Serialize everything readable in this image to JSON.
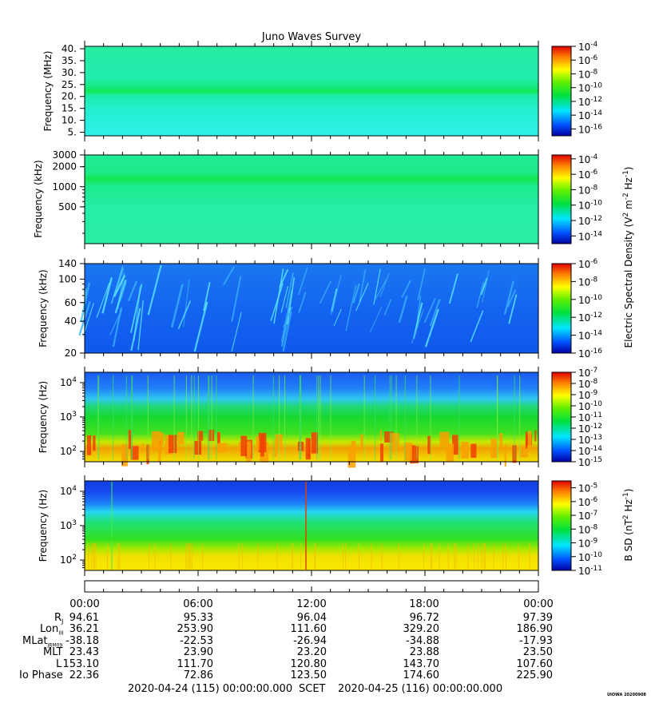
{
  "chart_data": {
    "type": "heatmap",
    "title": "Juno Waves Survey",
    "panels": [
      {
        "ylabel": "Frequency (MHz)",
        "yscale": "linear",
        "ylim": [
          3.5,
          41
        ],
        "yticks": [
          5,
          10,
          15,
          20,
          25,
          30,
          35,
          40
        ],
        "ytick_labels": [
          "5.",
          "10.",
          "15.",
          "20.",
          "25.",
          "30.",
          "35.",
          "40."
        ],
        "colorbar_ticks": [
          "-4",
          "-6",
          "-8",
          "-10",
          "-12",
          "-14",
          "-16"
        ],
        "colorbar_range": [
          -17,
          -4
        ]
      },
      {
        "ylabel": "Frequency (kHz)",
        "yscale": "log",
        "ylim": [
          140,
          3000
        ],
        "yticks": [
          500,
          1000,
          2000,
          3000
        ],
        "ytick_labels": [
          "500",
          "1000",
          "2000",
          "3000"
        ],
        "colorbar_ticks": [
          "-4",
          "-6",
          "-8",
          "-10",
          "-12",
          "-14"
        ],
        "colorbar_range": [
          -15,
          -3.5
        ]
      },
      {
        "ylabel": "Frequency (kHz)",
        "yscale": "log",
        "ylim": [
          20,
          140
        ],
        "yticks": [
          20,
          40,
          60,
          100,
          140
        ],
        "ytick_labels": [
          "20",
          "40",
          "60",
          "100",
          "140"
        ],
        "colorbar_ticks": [
          "-6",
          "-8",
          "-10",
          "-12",
          "-14",
          "-16"
        ],
        "colorbar_range": [
          -16,
          -6
        ]
      },
      {
        "ylabel": "Frequency (Hz)",
        "yscale": "log",
        "ylim": [
          50,
          20000
        ],
        "yticks": [
          100,
          1000,
          10000
        ],
        "ytick_labels": [
          "10",
          "10",
          "10"
        ],
        "ytick_exps": [
          "2",
          "3",
          "4"
        ],
        "colorbar_ticks": [
          "-7",
          "-8",
          "-9",
          "-10",
          "-11",
          "-12",
          "-13",
          "-14",
          "-15"
        ],
        "colorbar_range": [
          -15,
          -7
        ]
      },
      {
        "ylabel": "Frequency (Hz)",
        "yscale": "log",
        "ylim": [
          50,
          20000
        ],
        "yticks": [
          100,
          1000,
          10000
        ],
        "ytick_labels": [
          "10",
          "10",
          "10"
        ],
        "ytick_exps": [
          "2",
          "3",
          "4"
        ],
        "colorbar_ticks": [
          "-5",
          "-6",
          "-7",
          "-8",
          "-9",
          "-10",
          "-11"
        ],
        "colorbar_range": [
          -11,
          -4.5
        ]
      }
    ],
    "colorbar_labels": [
      {
        "prefix": "Electric Spectral Density (V",
        "sup1": "2",
        "mid": " m",
        "sup2": "-2",
        "mid2": " Hz",
        "sup3": "-1",
        "suffix": ")"
      },
      {
        "prefix": "B SD (nT",
        "sup1": "2",
        "mid": " Hz",
        "sup2": "-1",
        "mid2": "",
        "sup3": "",
        "suffix": ")"
      }
    ],
    "colorbar_base": "10",
    "x_ticks": [
      "00:00",
      "06:00",
      "12:00",
      "18:00",
      "00:00"
    ],
    "ephemeris": {
      "labels": [
        "R",
        "Lon",
        "MLat",
        "MLT",
        "L",
        "Io Phase"
      ],
      "label_subscripts": [
        "J",
        "III",
        "JRM09",
        "",
        "",
        ""
      ],
      "rows": [
        [
          "94.61",
          "95.33",
          "96.04",
          "96.72",
          "97.39"
        ],
        [
          "36.21",
          "253.90",
          "111.60",
          "329.20",
          "186.90"
        ],
        [
          "-38.18",
          "-22.53",
          "-26.94",
          "-34.88",
          "-17.93"
        ],
        [
          "23.43",
          "23.90",
          "23.20",
          "23.88",
          "23.50"
        ],
        [
          "153.10",
          "111.70",
          "120.80",
          "143.70",
          "107.60"
        ],
        [
          "22.36",
          "72.86",
          "123.50",
          "174.60",
          "225.90"
        ]
      ]
    },
    "footer": {
      "start": "2020-04-24 (115) 00:00:00.000",
      "scet": "SCET",
      "end": "2020-04-25 (116) 00:00:00.000",
      "credit": "UIOWA 20200908"
    }
  }
}
